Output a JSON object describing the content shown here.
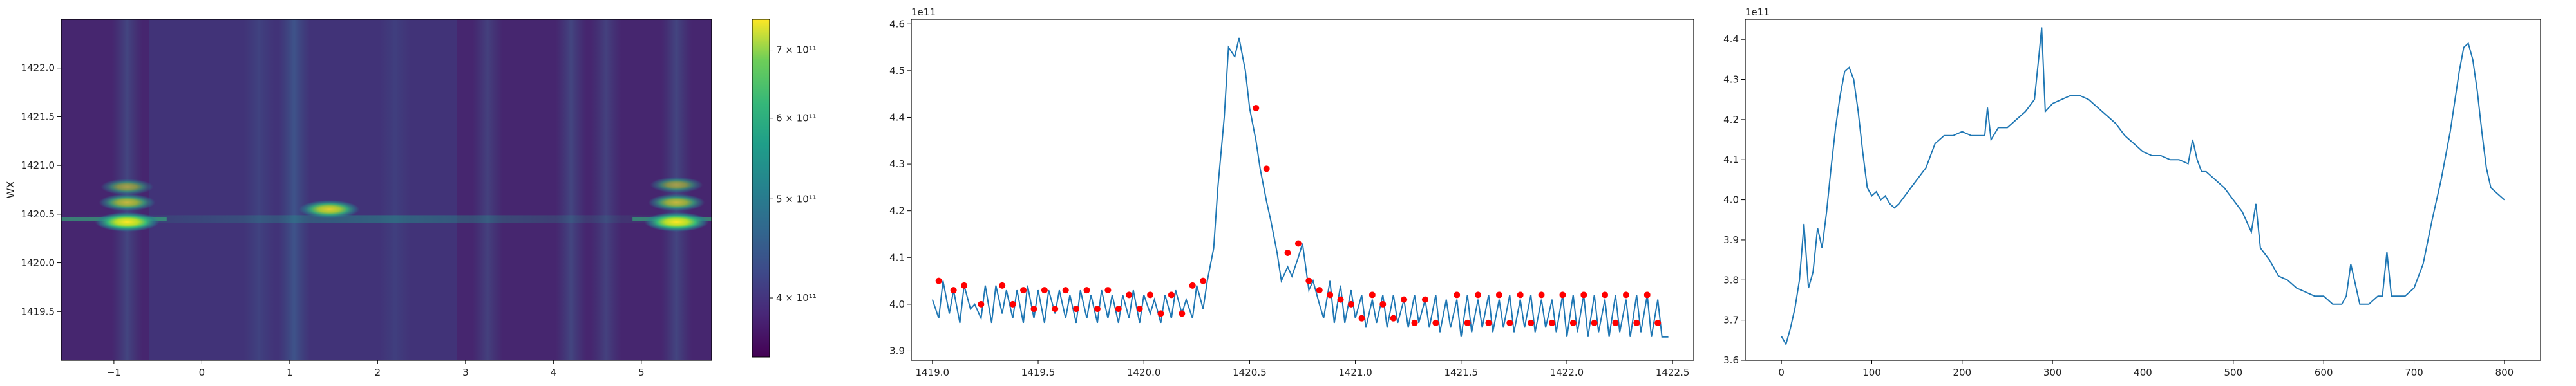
{
  "chart_data": [
    {
      "type": "heatmap",
      "title": "",
      "xlabel": "",
      "ylabel": "WX",
      "xlim": [
        -1.6,
        5.8
      ],
      "ylim": [
        1419.0,
        1422.5
      ],
      "x_ticks": [
        -1,
        0,
        1,
        2,
        3,
        4,
        5
      ],
      "x_tick_labels": [
        "−1",
        "0",
        "1",
        "2",
        "3",
        "4",
        "5"
      ],
      "y_ticks": [
        1419.5,
        1420.0,
        1420.5,
        1421.0,
        1421.5,
        1422.0
      ],
      "y_tick_labels": [
        "1419.5",
        "1420.0",
        "1420.5",
        "1421.0",
        "1421.5",
        "1422.0"
      ],
      "colormap": "viridis",
      "colorbar": {
        "scale": "log",
        "range": [
          350000000000.0,
          750000000000.0
        ],
        "ticks": [
          400000000000.0,
          500000000000.0,
          600000000000.0,
          700000000000.0
        ],
        "tick_labels": [
          "4 × 10¹¹",
          "5 × 10¹¹",
          "6 × 10¹¹",
          "7 × 10¹¹"
        ]
      },
      "vertical_bands": [
        {
          "x": -0.85,
          "intensity": 0.35
        },
        {
          "x": 0.65,
          "intensity": 0.25
        },
        {
          "x": 1.05,
          "intensity": 0.55
        },
        {
          "x": 2.2,
          "intensity": 0.2
        },
        {
          "x": 3.25,
          "intensity": 0.3
        },
        {
          "x": 4.2,
          "intensity": 0.35
        },
        {
          "x": 4.6,
          "intensity": 0.3
        },
        {
          "x": 5.4,
          "intensity": 0.35
        }
      ],
      "hot_spots": [
        {
          "x": -0.85,
          "y": 1420.42,
          "intensity": 1.0
        },
        {
          "x": -0.85,
          "y": 1420.62,
          "intensity": 0.7
        },
        {
          "x": -0.85,
          "y": 1420.78,
          "intensity": 0.55
        },
        {
          "x": 1.45,
          "y": 1420.55,
          "intensity": 0.85
        },
        {
          "x": 5.4,
          "y": 1420.42,
          "intensity": 1.0
        },
        {
          "x": 5.4,
          "y": 1420.62,
          "intensity": 0.7
        },
        {
          "x": 5.4,
          "y": 1420.8,
          "intensity": 0.55
        }
      ],
      "ridge_y": 1420.45
    },
    {
      "type": "line",
      "title": "",
      "xlabel": "",
      "ylabel": "",
      "xlim": [
        1418.9,
        1422.6
      ],
      "ylim": [
        3.88,
        4.61
      ],
      "y_offset_label": "1e11",
      "x_ticks": [
        1419.0,
        1419.5,
        1420.0,
        1420.5,
        1421.0,
        1421.5,
        1422.0,
        1422.5
      ],
      "x_tick_labels": [
        "1419.0",
        "1419.5",
        "1420.0",
        "1420.5",
        "1421.0",
        "1421.5",
        "1422.0",
        "1422.5"
      ],
      "y_ticks": [
        3.9,
        4.0,
        4.1,
        4.2,
        4.3,
        4.4,
        4.5,
        4.6
      ],
      "y_tick_labels": [
        "3.9",
        "4.0",
        "4.1",
        "4.2",
        "4.3",
        "4.4",
        "4.5",
        "4.6"
      ],
      "line_color": "#1f77b4",
      "marker_color": "#ff0000",
      "series": [
        {
          "x": [
            1419.0,
            1419.03,
            1419.05,
            1419.08,
            1419.1,
            1419.13,
            1419.15,
            1419.18,
            1419.2,
            1419.23,
            1419.25,
            1419.28,
            1419.3,
            1419.33,
            1419.35,
            1419.38,
            1419.4,
            1419.43,
            1419.45,
            1419.48,
            1419.5,
            1419.53,
            1419.55,
            1419.58,
            1419.6,
            1419.63,
            1419.65,
            1419.68,
            1419.7,
            1419.73,
            1419.75,
            1419.78,
            1419.8,
            1419.83,
            1419.85,
            1419.88,
            1419.9,
            1419.93,
            1419.95,
            1419.98,
            1420.0,
            1420.03,
            1420.05,
            1420.08,
            1420.1,
            1420.13,
            1420.15,
            1420.18,
            1420.2,
            1420.23,
            1420.25,
            1420.28,
            1420.3,
            1420.33,
            1420.35,
            1420.38,
            1420.4,
            1420.43,
            1420.45,
            1420.48,
            1420.5,
            1420.53,
            1420.55,
            1420.58,
            1420.6,
            1420.63,
            1420.65,
            1420.68,
            1420.7,
            1420.73,
            1420.75,
            1420.78,
            1420.8,
            1420.83,
            1420.85,
            1420.88,
            1420.9,
            1420.93,
            1420.95,
            1420.98,
            1421.0,
            1421.03,
            1421.05,
            1421.08,
            1421.1,
            1421.13,
            1421.15,
            1421.18,
            1421.2,
            1421.23,
            1421.25,
            1421.28,
            1421.3,
            1421.33,
            1421.35,
            1421.38,
            1421.4,
            1421.43,
            1421.45,
            1421.48,
            1421.5,
            1421.53,
            1421.55,
            1421.58,
            1421.6,
            1421.63,
            1421.65,
            1421.68,
            1421.7,
            1421.73,
            1421.75,
            1421.78,
            1421.8,
            1421.83,
            1421.85,
            1421.88,
            1421.9,
            1421.93,
            1421.95,
            1421.98,
            1422.0,
            1422.03,
            1422.05,
            1422.08,
            1422.1,
            1422.13,
            1422.15,
            1422.18,
            1422.2,
            1422.23,
            1422.25,
            1422.28,
            1422.3,
            1422.33,
            1422.35,
            1422.38,
            1422.4,
            1422.43,
            1422.45,
            1422.48
          ],
          "y": [
            4.01,
            3.97,
            4.05,
            3.98,
            4.03,
            3.96,
            4.04,
            3.99,
            4.0,
            3.97,
            4.04,
            3.96,
            4.04,
            3.98,
            4.03,
            3.97,
            4.03,
            3.96,
            4.04,
            3.97,
            4.03,
            3.96,
            4.03,
            3.98,
            4.03,
            3.97,
            4.02,
            3.96,
            4.03,
            3.97,
            4.02,
            3.96,
            4.03,
            3.97,
            4.02,
            3.96,
            4.02,
            3.97,
            4.03,
            3.96,
            4.02,
            3.98,
            4.01,
            3.96,
            4.02,
            3.97,
            4.03,
            3.98,
            4.01,
            3.97,
            4.04,
            3.99,
            4.05,
            4.12,
            4.25,
            4.4,
            4.55,
            4.53,
            4.57,
            4.5,
            4.42,
            4.35,
            4.29,
            4.22,
            4.18,
            4.11,
            4.05,
            4.08,
            4.06,
            4.1,
            4.13,
            4.03,
            4.05,
            4.0,
            3.97,
            4.05,
            3.96,
            4.04,
            3.96,
            4.03,
            3.97,
            4.02,
            3.95,
            4.01,
            3.96,
            4.02,
            3.95,
            4.02,
            3.96,
            4.01,
            3.95,
            4.02,
            3.96,
            4.01,
            3.95,
            4.02,
            3.94,
            4.01,
            3.95,
            4.01,
            3.93,
            4.02,
            3.94,
            4.01,
            3.95,
            4.02,
            3.94,
            4.01,
            3.95,
            4.02,
            3.94,
            4.01,
            3.95,
            4.02,
            3.94,
            4.01,
            3.95,
            4.01,
            3.94,
            4.02,
            3.93,
            4.02,
            3.94,
            4.02,
            3.93,
            4.02,
            3.94,
            4.01,
            3.93,
            4.02,
            3.94,
            4.01,
            3.93,
            4.02,
            3.94,
            4.02,
            3.93,
            4.01,
            3.93,
            3.93
          ]
        }
      ],
      "peaks": {
        "x": [
          1419.03,
          1419.1,
          1419.15,
          1419.23,
          1419.33,
          1419.38,
          1419.43,
          1419.48,
          1419.53,
          1419.58,
          1419.63,
          1419.68,
          1419.73,
          1419.78,
          1419.83,
          1419.88,
          1419.93,
          1419.98,
          1420.03,
          1420.08,
          1420.13,
          1420.18,
          1420.23,
          1420.28,
          1420.53,
          1420.58,
          1420.68,
          1420.73,
          1420.78,
          1420.83,
          1420.88,
          1420.93,
          1420.98,
          1421.03,
          1421.08,
          1421.13,
          1421.18,
          1421.23,
          1421.28,
          1421.33,
          1421.38,
          1421.48,
          1421.53,
          1421.58,
          1421.63,
          1421.68,
          1421.73,
          1421.78,
          1421.83,
          1421.88,
          1421.93,
          1421.98,
          1422.03,
          1422.08,
          1422.13,
          1422.18,
          1422.23,
          1422.28,
          1422.33,
          1422.38,
          1422.43
        ],
        "y": [
          4.05,
          4.03,
          4.04,
          4.0,
          4.04,
          4.0,
          4.03,
          3.99,
          4.03,
          3.99,
          4.03,
          3.99,
          4.03,
          3.99,
          4.03,
          3.99,
          4.02,
          3.99,
          4.02,
          3.98,
          4.02,
          3.98,
          4.04,
          4.05,
          4.42,
          4.29,
          4.11,
          4.13,
          4.05,
          4.03,
          4.02,
          4.01,
          4.0,
          3.97,
          4.02,
          4.0,
          3.97,
          4.01,
          3.96,
          4.01,
          3.96,
          4.02,
          3.96,
          4.02,
          3.96,
          4.02,
          3.96,
          4.02,
          3.96,
          4.02,
          3.96,
          4.02,
          3.96,
          4.02,
          3.96,
          4.02,
          3.96,
          4.02,
          3.96,
          4.02,
          3.96
        ]
      }
    },
    {
      "type": "line",
      "title": "",
      "xlabel": "",
      "ylabel": "",
      "xlim": [
        -40,
        840
      ],
      "ylim": [
        3.6,
        4.45
      ],
      "y_offset_label": "1e11",
      "x_ticks": [
        0,
        100,
        200,
        300,
        400,
        500,
        600,
        700,
        800
      ],
      "x_tick_labels": [
        "0",
        "100",
        "200",
        "300",
        "400",
        "500",
        "600",
        "700",
        "800"
      ],
      "y_ticks": [
        3.6,
        3.7,
        3.8,
        3.9,
        4.0,
        4.1,
        4.2,
        4.3,
        4.4
      ],
      "y_tick_labels": [
        "3.6",
        "3.7",
        "3.8",
        "3.9",
        "4.0",
        "4.1",
        "4.2",
        "4.3",
        "4.4"
      ],
      "line_color": "#1f77b4",
      "series": [
        {
          "x": [
            0,
            5,
            10,
            15,
            20,
            25,
            30,
            35,
            40,
            45,
            50,
            55,
            60,
            65,
            70,
            75,
            80,
            85,
            90,
            95,
            100,
            105,
            110,
            115,
            120,
            125,
            130,
            140,
            150,
            160,
            170,
            180,
            190,
            200,
            210,
            220,
            225,
            228,
            232,
            240,
            250,
            260,
            270,
            280,
            285,
            288,
            292,
            300,
            310,
            320,
            330,
            340,
            350,
            360,
            370,
            380,
            390,
            400,
            410,
            420,
            430,
            440,
            450,
            455,
            460,
            465,
            470,
            480,
            490,
            500,
            510,
            520,
            525,
            530,
            540,
            550,
            560,
            570,
            580,
            590,
            600,
            610,
            620,
            625,
            630,
            635,
            640,
            650,
            660,
            665,
            670,
            675,
            680,
            690,
            700,
            710,
            720,
            730,
            740,
            750,
            755,
            760,
            765,
            770,
            775,
            780,
            785,
            790,
            795,
            800
          ],
          "y": [
            3.66,
            3.64,
            3.68,
            3.73,
            3.8,
            3.94,
            3.78,
            3.82,
            3.93,
            3.88,
            3.97,
            4.08,
            4.18,
            4.26,
            4.32,
            4.33,
            4.3,
            4.22,
            4.12,
            4.03,
            4.01,
            4.02,
            4.0,
            4.01,
            3.99,
            3.98,
            3.99,
            4.02,
            4.05,
            4.08,
            4.14,
            4.16,
            4.16,
            4.17,
            4.16,
            4.16,
            4.16,
            4.23,
            4.15,
            4.18,
            4.18,
            4.2,
            4.22,
            4.25,
            4.36,
            4.43,
            4.22,
            4.24,
            4.25,
            4.26,
            4.26,
            4.25,
            4.23,
            4.21,
            4.19,
            4.16,
            4.14,
            4.12,
            4.11,
            4.11,
            4.1,
            4.1,
            4.09,
            4.15,
            4.1,
            4.07,
            4.07,
            4.05,
            4.03,
            4.0,
            3.97,
            3.92,
            3.99,
            3.88,
            3.85,
            3.81,
            3.8,
            3.78,
            3.77,
            3.76,
            3.76,
            3.74,
            3.74,
            3.76,
            3.84,
            3.79,
            3.74,
            3.74,
            3.76,
            3.76,
            3.87,
            3.76,
            3.76,
            3.76,
            3.78,
            3.84,
            3.95,
            4.05,
            4.17,
            4.32,
            4.38,
            4.39,
            4.35,
            4.27,
            4.17,
            4.08,
            4.03,
            4.02,
            4.01,
            4.0
          ]
        }
      ]
    }
  ]
}
